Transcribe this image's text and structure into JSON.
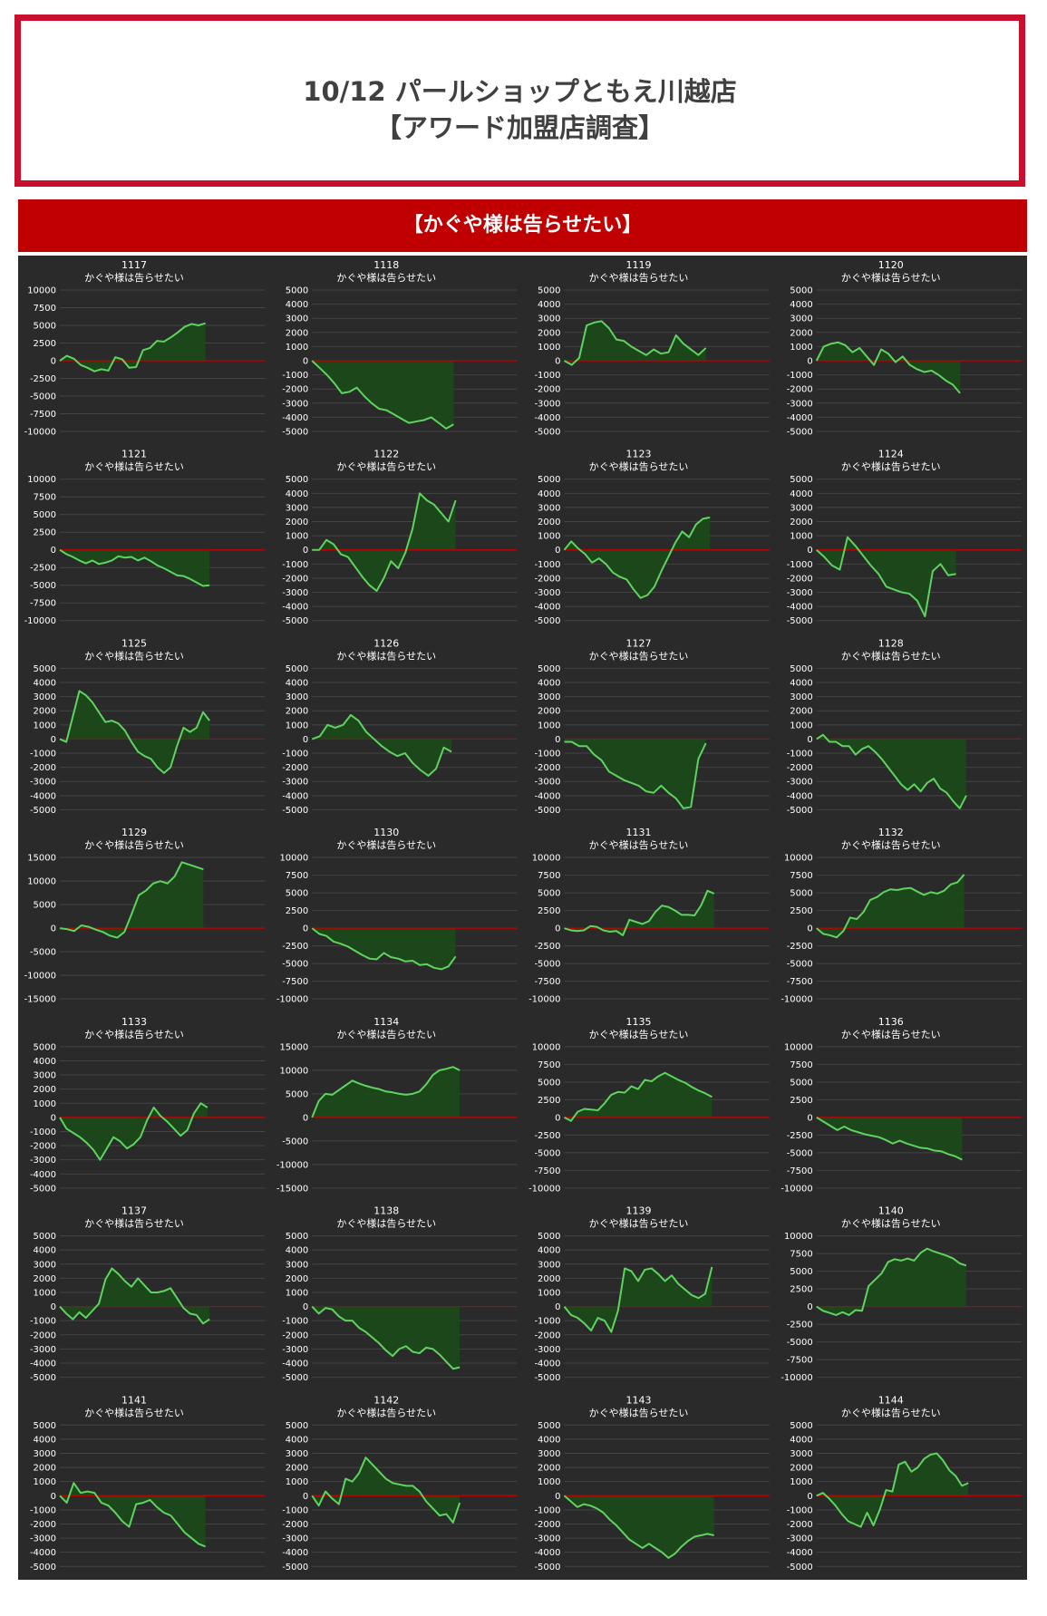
{
  "header": {
    "title_line1": "10/12 パールショップともえ川越店",
    "title_line2": "【アワード加盟店調査】"
  },
  "banner": {
    "label": "【かぐや様は告らせたい】"
  },
  "colors": {
    "border": "#c8102e",
    "banner": "#c00000",
    "panel": "#2a2a2a",
    "line": "#5fd35f",
    "fill": "#1a4a1a",
    "zero": "#c00000"
  },
  "chart_data": [
    {
      "type": "area",
      "title": "1117",
      "subtitle": "かぐや様は告らせたい",
      "ylim": [
        -10000,
        10000
      ],
      "yticks": [
        10000,
        7500,
        5000,
        2500,
        0,
        -2500,
        -5000,
        -7500,
        -10000
      ],
      "y": [
        0,
        700,
        300,
        -600,
        -1000,
        -1500,
        -1200,
        -1400,
        500,
        200,
        -1000,
        -900,
        1500,
        1800,
        2800,
        2700,
        3300,
        4000,
        4800,
        5200,
        5000,
        5300
      ]
    },
    {
      "type": "area",
      "title": "1118",
      "subtitle": "かぐや様は告らせたい",
      "ylim": [
        -5000,
        5000
      ],
      "yticks": [
        5000,
        4000,
        3000,
        2000,
        1000,
        0,
        -1000,
        -2000,
        -3000,
        -4000,
        -5000
      ],
      "y": [
        0,
        -500,
        -1000,
        -1600,
        -2300,
        -2200,
        -1900,
        -2500,
        -3000,
        -3400,
        -3500,
        -3800,
        -4100,
        -4400,
        -4300,
        -4200,
        -4000,
        -4400,
        -4800,
        -4500
      ]
    },
    {
      "type": "area",
      "title": "1119",
      "subtitle": "かぐや様は告らせたい",
      "ylim": [
        -5000,
        5000
      ],
      "yticks": [
        5000,
        4000,
        3000,
        2000,
        1000,
        0,
        -1000,
        -2000,
        -3000,
        -4000,
        -5000
      ],
      "y": [
        0,
        -300,
        200,
        2500,
        2700,
        2800,
        2300,
        1500,
        1400,
        1000,
        700,
        400,
        800,
        500,
        600,
        1800,
        1200,
        800,
        400,
        900
      ]
    },
    {
      "type": "area",
      "title": "1120",
      "subtitle": "かぐや様は告らせたい",
      "ylim": [
        -5000,
        5000
      ],
      "yticks": [
        5000,
        4000,
        3000,
        2000,
        1000,
        0,
        -1000,
        -2000,
        -3000,
        -4000,
        -5000
      ],
      "y": [
        0,
        1000,
        1200,
        1300,
        1100,
        600,
        900,
        300,
        -300,
        800,
        500,
        -100,
        300,
        -300,
        -600,
        -800,
        -700,
        -1000,
        -1400,
        -1700,
        -2300
      ]
    },
    {
      "type": "area",
      "title": "1121",
      "subtitle": "かぐや様は告らせたい",
      "ylim": [
        -10000,
        10000
      ],
      "yticks": [
        10000,
        7500,
        5000,
        2500,
        0,
        -2500,
        -5000,
        -7500,
        -10000
      ],
      "y": [
        0,
        -600,
        -1000,
        -1500,
        -1900,
        -1500,
        -2000,
        -1800,
        -1500,
        -900,
        -1100,
        -1000,
        -1500,
        -1100,
        -1600,
        -2200,
        -2600,
        -3100,
        -3600,
        -3700,
        -4100,
        -4600,
        -5100,
        -5000
      ]
    },
    {
      "type": "area",
      "title": "1122",
      "subtitle": "かぐや様は告らせたい",
      "ylim": [
        -5000,
        5000
      ],
      "yticks": [
        5000,
        4000,
        3000,
        2000,
        1000,
        0,
        -1000,
        -2000,
        -3000,
        -4000,
        -5000
      ],
      "y": [
        0,
        0,
        700,
        400,
        -300,
        -500,
        -1200,
        -1900,
        -2500,
        -2900,
        -2000,
        -800,
        -1300,
        -200,
        1500,
        4000,
        3500,
        3200,
        2600,
        2000,
        3500
      ]
    },
    {
      "type": "area",
      "title": "1123",
      "subtitle": "かぐや様は告らせたい",
      "ylim": [
        -5000,
        5000
      ],
      "yticks": [
        5000,
        4000,
        3000,
        2000,
        1000,
        0,
        -1000,
        -2000,
        -3000,
        -4000,
        -5000
      ],
      "y": [
        0,
        600,
        100,
        -300,
        -900,
        -600,
        -1000,
        -1600,
        -1900,
        -2100,
        -2800,
        -3400,
        -3200,
        -2600,
        -1500,
        -500,
        500,
        1300,
        900,
        1800,
        2200,
        2300
      ]
    },
    {
      "type": "area",
      "title": "1124",
      "subtitle": "かぐや様は告らせたい",
      "ylim": [
        -5000,
        5000
      ],
      "yticks": [
        5000,
        4000,
        3000,
        2000,
        1000,
        0,
        -1000,
        -2000,
        -3000,
        -4000,
        -5000
      ],
      "y": [
        0,
        -500,
        -1100,
        -1400,
        900,
        300,
        -400,
        -1100,
        -1700,
        -2600,
        -2800,
        -3000,
        -3100,
        -3600,
        -4700,
        -1500,
        -1000,
        -1800,
        -1700
      ]
    },
    {
      "type": "area",
      "title": "1125",
      "subtitle": "かぐや様は告らせたい",
      "ylim": [
        -5000,
        5000
      ],
      "yticks": [
        5000,
        4000,
        3000,
        2000,
        1000,
        0,
        -1000,
        -2000,
        -3000,
        -4000,
        -5000
      ],
      "y": [
        0,
        -200,
        1600,
        3400,
        3100,
        2600,
        1900,
        1200,
        1300,
        1100,
        600,
        -200,
        -900,
        -1200,
        -1400,
        -2000,
        -2400,
        -2000,
        -500,
        800,
        500,
        800,
        1900,
        1300
      ]
    },
    {
      "type": "area",
      "title": "1126",
      "subtitle": "かぐや様は告らせたい",
      "ylim": [
        -5000,
        5000
      ],
      "yticks": [
        5000,
        4000,
        3000,
        2000,
        1000,
        0,
        -1000,
        -2000,
        -3000,
        -4000,
        -5000
      ],
      "y": [
        0,
        200,
        1000,
        800,
        1000,
        1700,
        1300,
        500,
        0,
        -500,
        -900,
        -1200,
        -1000,
        -1700,
        -2200,
        -2600,
        -2100,
        -600,
        -900
      ]
    },
    {
      "type": "area",
      "title": "1127",
      "subtitle": "かぐや様は告らせたい",
      "ylim": [
        -5000,
        5000
      ],
      "yticks": [
        5000,
        4000,
        3000,
        2000,
        1000,
        0,
        -1000,
        -2000,
        -3000,
        -4000,
        -5000
      ],
      "y": [
        -200,
        -200,
        -500,
        -500,
        -1100,
        -1500,
        -2300,
        -2600,
        -2900,
        -3100,
        -3300,
        -3700,
        -3800,
        -3300,
        -3800,
        -4200,
        -4900,
        -4800,
        -1400,
        -300
      ]
    },
    {
      "type": "area",
      "title": "1128",
      "subtitle": "かぐや様は告らせたい",
      "ylim": [
        -5000,
        5000
      ],
      "yticks": [
        5000,
        4000,
        3000,
        2000,
        1000,
        0,
        -1000,
        -2000,
        -3000,
        -4000,
        -5000
      ],
      "y": [
        0,
        300,
        -200,
        -200,
        -500,
        -500,
        -1100,
        -700,
        -500,
        -900,
        -1400,
        -2000,
        -2600,
        -3200,
        -3600,
        -3200,
        -3700,
        -3100,
        -2800,
        -3500,
        -3800,
        -4400,
        -4900,
        -4000
      ]
    },
    {
      "type": "area",
      "title": "1129",
      "subtitle": "かぐや様は告らせたい",
      "ylim": [
        -15000,
        15000
      ],
      "yticks": [
        15000,
        10000,
        5000,
        0,
        -5000,
        -10000,
        -15000
      ],
      "y": [
        0,
        -200,
        -600,
        600,
        300,
        -300,
        -800,
        -1600,
        -2000,
        -800,
        3000,
        7000,
        8000,
        9500,
        10000,
        9500,
        11000,
        14000,
        13500,
        13000,
        12500
      ]
    },
    {
      "type": "area",
      "title": "1130",
      "subtitle": "かぐや様は告らせたい",
      "ylim": [
        -10000,
        10000
      ],
      "yticks": [
        10000,
        7500,
        5000,
        2500,
        0,
        -2500,
        -5000,
        -7500,
        -10000
      ],
      "y": [
        0,
        -800,
        -1100,
        -1900,
        -2200,
        -2600,
        -3200,
        -3800,
        -4300,
        -4400,
        -3500,
        -4100,
        -4300,
        -4700,
        -4600,
        -5200,
        -5100,
        -5600,
        -5800,
        -5400,
        -4000
      ]
    },
    {
      "type": "area",
      "title": "1131",
      "subtitle": "かぐや様は告らせたい",
      "ylim": [
        -10000,
        10000
      ],
      "yticks": [
        10000,
        7500,
        5000,
        2500,
        0,
        -2500,
        -5000,
        -7500,
        -10000
      ],
      "y": [
        0,
        -300,
        -400,
        -300,
        300,
        200,
        -300,
        -500,
        -400,
        -1000,
        1200,
        900,
        600,
        1000,
        2300,
        3200,
        3000,
        2500,
        1900,
        1900,
        1800,
        3200,
        5300,
        4900
      ]
    },
    {
      "type": "area",
      "title": "1132",
      "subtitle": "かぐや様は告らせたい",
      "ylim": [
        -10000,
        10000
      ],
      "yticks": [
        10000,
        7500,
        5000,
        2500,
        0,
        -2500,
        -5000,
        -7500,
        -10000
      ],
      "y": [
        0,
        -800,
        -1000,
        -1300,
        -400,
        1500,
        1300,
        2300,
        4000,
        4400,
        5100,
        5500,
        5400,
        5600,
        5700,
        5200,
        4700,
        5100,
        4900,
        5300,
        6200,
        6500,
        7600
      ]
    },
    {
      "type": "area",
      "title": "1133",
      "subtitle": "かぐや様は告らせたい",
      "ylim": [
        -5000,
        5000
      ],
      "yticks": [
        5000,
        4000,
        3000,
        2000,
        1000,
        0,
        -1000,
        -2000,
        -3000,
        -4000,
        -5000
      ],
      "y": [
        0,
        -800,
        -1100,
        -1400,
        -1800,
        -2300,
        -3000,
        -2200,
        -1400,
        -1700,
        -2200,
        -1900,
        -1400,
        -200,
        700,
        100,
        -300,
        -800,
        -1300,
        -900,
        300,
        1000,
        700
      ]
    },
    {
      "type": "area",
      "title": "1134",
      "subtitle": "かぐや様は告らせたい",
      "ylim": [
        -15000,
        15000
      ],
      "yticks": [
        15000,
        10000,
        5000,
        0,
        -5000,
        -10000,
        -15000
      ],
      "y": [
        0,
        3500,
        5000,
        4800,
        5800,
        6800,
        7800,
        7200,
        6700,
        6300,
        6000,
        5500,
        5300,
        5000,
        4800,
        5000,
        5500,
        7000,
        9000,
        10000,
        10300,
        10700,
        10000
      ]
    },
    {
      "type": "area",
      "title": "1135",
      "subtitle": "かぐや様は告らせたい",
      "ylim": [
        -10000,
        10000
      ],
      "yticks": [
        10000,
        7500,
        5000,
        2500,
        0,
        -2500,
        -5000,
        -7500,
        -10000
      ],
      "y": [
        0,
        -500,
        800,
        1200,
        1100,
        1000,
        2000,
        3200,
        3600,
        3500,
        4400,
        4000,
        5300,
        5100,
        5800,
        6300,
        5800,
        5300,
        4900,
        4300,
        3800,
        3400,
        2900
      ]
    },
    {
      "type": "area",
      "title": "1136",
      "subtitle": "かぐや様は告らせたい",
      "ylim": [
        -10000,
        10000
      ],
      "yticks": [
        10000,
        7500,
        5000,
        2500,
        0,
        -2500,
        -5000,
        -7500,
        -10000
      ],
      "y": [
        0,
        -600,
        -1200,
        -1800,
        -1300,
        -1800,
        -2100,
        -2400,
        -2600,
        -2800,
        -3200,
        -3700,
        -3300,
        -3700,
        -4000,
        -4300,
        -4400,
        -4700,
        -4800,
        -5200,
        -5500,
        -6000
      ]
    },
    {
      "type": "area",
      "title": "1137",
      "subtitle": "かぐや様は告らせたい",
      "ylim": [
        -5000,
        5000
      ],
      "yticks": [
        5000,
        4000,
        3000,
        2000,
        1000,
        0,
        -1000,
        -2000,
        -3000,
        -4000,
        -5000
      ],
      "y": [
        0,
        -500,
        -900,
        -400,
        -800,
        -300,
        200,
        1900,
        2700,
        2300,
        1800,
        1400,
        2000,
        1500,
        1000,
        1000,
        1100,
        1300,
        600,
        -100,
        -500,
        -600,
        -1200,
        -900
      ]
    },
    {
      "type": "area",
      "title": "1138",
      "subtitle": "かぐや様は告らせたい",
      "ylim": [
        -5000,
        5000
      ],
      "yticks": [
        5000,
        4000,
        3000,
        2000,
        1000,
        0,
        -1000,
        -2000,
        -3000,
        -4000,
        -5000
      ],
      "y": [
        0,
        -500,
        -100,
        -200,
        -700,
        -1000,
        -1000,
        -1500,
        -1800,
        -2200,
        -2600,
        -3100,
        -3500,
        -3000,
        -2800,
        -3200,
        -3300,
        -2900,
        -3000,
        -3400,
        -3900,
        -4400,
        -4300
      ]
    },
    {
      "type": "area",
      "title": "1139",
      "subtitle": "かぐや様は告らせたい",
      "ylim": [
        -5000,
        5000
      ],
      "yticks": [
        5000,
        4000,
        3000,
        2000,
        1000,
        0,
        -1000,
        -2000,
        -3000,
        -4000,
        -5000
      ],
      "y": [
        0,
        -600,
        -800,
        -1200,
        -1700,
        -800,
        -1000,
        -1800,
        -300,
        2700,
        2500,
        1800,
        2600,
        2700,
        2300,
        1800,
        2200,
        1600,
        1200,
        800,
        600,
        900,
        2800
      ]
    },
    {
      "type": "area",
      "title": "1140",
      "subtitle": "かぐや様は告らせたい",
      "ylim": [
        -10000,
        10000
      ],
      "yticks": [
        10000,
        7500,
        5000,
        2500,
        0,
        -2500,
        -5000,
        -7500,
        -10000
      ],
      "y": [
        0,
        -600,
        -900,
        -1200,
        -800,
        -1200,
        -500,
        -600,
        2900,
        3800,
        4700,
        6300,
        6700,
        6500,
        6800,
        6500,
        7600,
        8200,
        7800,
        7500,
        7200,
        6800,
        6100,
        5800
      ]
    },
    {
      "type": "area",
      "title": "1141",
      "subtitle": "かぐや様は告らせたい",
      "ylim": [
        -5000,
        5000
      ],
      "yticks": [
        5000,
        4000,
        3000,
        2000,
        1000,
        0,
        -1000,
        -2000,
        -3000,
        -4000,
        -5000
      ],
      "y": [
        0,
        -500,
        900,
        200,
        300,
        200,
        -500,
        -700,
        -1200,
        -1800,
        -2200,
        -600,
        -500,
        -300,
        -800,
        -1200,
        -1400,
        -2000,
        -2600,
        -3000,
        -3400,
        -3600
      ]
    },
    {
      "type": "area",
      "title": "1142",
      "subtitle": "かぐや様は告らせたい",
      "ylim": [
        -5000,
        5000
      ],
      "yticks": [
        5000,
        4000,
        3000,
        2000,
        1000,
        0,
        -1000,
        -2000,
        -3000,
        -4000,
        -5000
      ],
      "y": [
        0,
        -700,
        300,
        -200,
        -600,
        1200,
        1000,
        1600,
        2700,
        2200,
        1700,
        1200,
        900,
        800,
        700,
        700,
        300,
        -400,
        -900,
        -1400,
        -1300,
        -1900,
        -500
      ]
    },
    {
      "type": "area",
      "title": "1143",
      "subtitle": "かぐや様は告らせたい",
      "ylim": [
        -5000,
        5000
      ],
      "yticks": [
        5000,
        4000,
        3000,
        2000,
        1000,
        0,
        -1000,
        -2000,
        -3000,
        -4000,
        -5000
      ],
      "y": [
        0,
        -400,
        -800,
        -600,
        -700,
        -900,
        -1200,
        -1700,
        -2100,
        -2600,
        -3100,
        -3400,
        -3700,
        -3400,
        -3700,
        -4000,
        -4400,
        -4100,
        -3600,
        -3200,
        -2900,
        -2800,
        -2700,
        -2800
      ]
    },
    {
      "type": "area",
      "title": "1144",
      "subtitle": "かぐや様は告らせたい",
      "ylim": [
        -5000,
        5000
      ],
      "yticks": [
        5000,
        4000,
        3000,
        2000,
        1000,
        0,
        -1000,
        -2000,
        -3000,
        -4000,
        -5000
      ],
      "y": [
        0,
        200,
        -200,
        -700,
        -1300,
        -1800,
        -2000,
        -2200,
        -1200,
        -2100,
        -1000,
        400,
        300,
        2200,
        2400,
        1700,
        2000,
        2600,
        2900,
        3000,
        2500,
        1800,
        1400,
        700,
        900
      ]
    }
  ]
}
